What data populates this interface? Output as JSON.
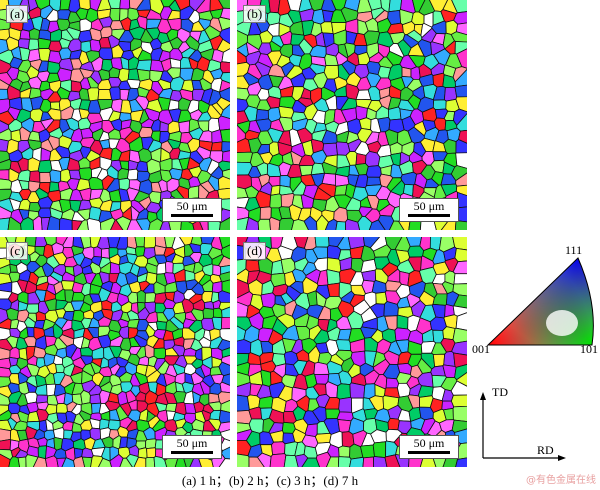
{
  "panels": [
    {
      "id": "a",
      "label": "(a)",
      "scale": "50 μm",
      "density": 23,
      "seed": 11
    },
    {
      "id": "b",
      "label": "(b)",
      "scale": "50 μm",
      "density": 21,
      "seed": 23
    },
    {
      "id": "c",
      "label": "(c)",
      "scale": "50 μm",
      "density": 25,
      "seed": 37
    },
    {
      "id": "d",
      "label": "(d)",
      "scale": "50 μm",
      "density": 20,
      "seed": 53
    }
  ],
  "orientation_colors": [
    "#33cc33",
    "#22dd22",
    "#66ee44",
    "#00cc66",
    "#ff2222",
    "#ee1155",
    "#ff33cc",
    "#cc22ff",
    "#9933ff",
    "#3333ff",
    "#2255ee",
    "#33aaff",
    "#33dddd",
    "#ffee33",
    "#ddff33",
    "#99ff66",
    "#ffffff",
    "#ff9999",
    "#66ffaa",
    "#ff66ff"
  ],
  "legend": {
    "corner_111": "111",
    "corner_001": "001",
    "corner_101": "101",
    "td": "TD",
    "rd": "RD"
  },
  "caption": "(a) 1 h；(b) 2 h；(c) 3 h；(d) 7 h",
  "watermark": "@有色金属在线"
}
